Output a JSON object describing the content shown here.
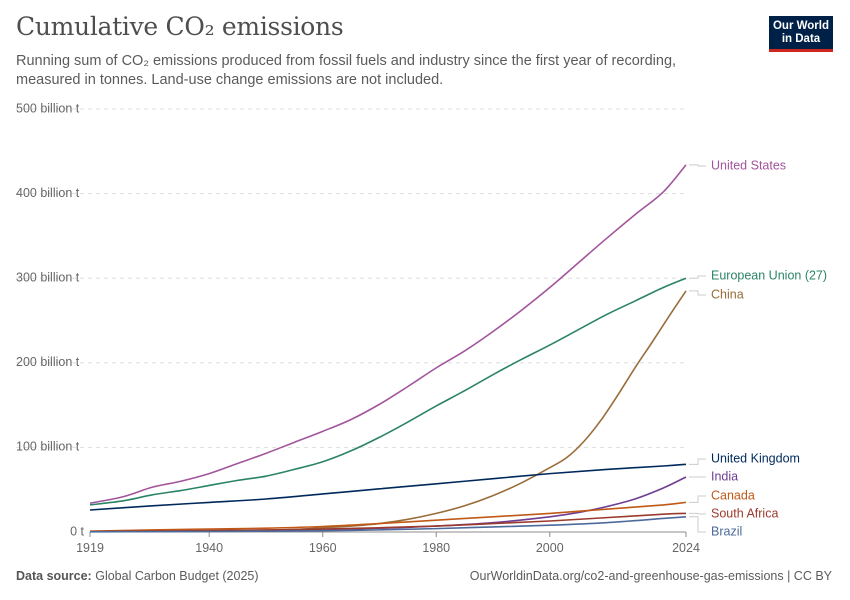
{
  "header": {
    "title": "Cumulative CO₂ emissions",
    "subtitle": "Running sum of CO₂ emissions produced from fossil fuels and industry since the first year of recording, measured in tonnes. Land-use change emissions are not included.",
    "logo_line1": "Our World",
    "logo_line2": "in Data"
  },
  "footer": {
    "source_label": "Data source:",
    "source": "Global Carbon Budget (2025)",
    "url": "OurWorldinData.org/co2-and-greenhouse-gas-emissions | CC BY"
  },
  "chart_data": {
    "type": "line",
    "title": "Cumulative CO₂ emissions",
    "xlim": [
      1919,
      2024
    ],
    "ylim": [
      0,
      500
    ],
    "x_ticks": [
      "1919",
      "1940",
      "1960",
      "1980",
      "2000",
      "2024"
    ],
    "x_tick_values": [
      1919,
      1940,
      1960,
      1980,
      2000,
      2024
    ],
    "y_ticks": [
      "0 t",
      "100 billion t",
      "200 billion t",
      "300 billion t",
      "400 billion t",
      "500 billion t"
    ],
    "y_tick_values": [
      0,
      100,
      200,
      300,
      400,
      500
    ],
    "grid": "horizontal dashed",
    "legend": "right, end-of-line labels",
    "series": [
      {
        "name": "United States",
        "color": "#a2559c",
        "x": [
          1919,
          1925,
          1930,
          1935,
          1940,
          1945,
          1950,
          1955,
          1960,
          1965,
          1970,
          1975,
          1980,
          1985,
          1990,
          1995,
          2000,
          2005,
          2010,
          2015,
          2020,
          2024
        ],
        "values": [
          34,
          42,
          53,
          60,
          69,
          81,
          93,
          106,
          119,
          133,
          151,
          172,
          194,
          214,
          237,
          262,
          289,
          318,
          347,
          375,
          402,
          434
        ]
      },
      {
        "name": "European Union (27)",
        "color": "#2b8465",
        "x": [
          1919,
          1925,
          1930,
          1935,
          1940,
          1945,
          1950,
          1955,
          1960,
          1965,
          1970,
          1975,
          1980,
          1985,
          1990,
          1995,
          2000,
          2005,
          2010,
          2015,
          2020,
          2024
        ],
        "values": [
          32,
          37,
          44,
          49,
          55,
          61,
          66,
          74,
          83,
          96,
          112,
          130,
          149,
          167,
          186,
          204,
          221,
          239,
          257,
          273,
          289,
          300
        ]
      },
      {
        "name": "China",
        "color": "#996d39",
        "x": [
          1919,
          1930,
          1940,
          1950,
          1955,
          1960,
          1965,
          1970,
          1975,
          1980,
          1985,
          1990,
          1995,
          2000,
          2003,
          2006,
          2009,
          2012,
          2015,
          2018,
          2021,
          2024
        ],
        "values": [
          0.5,
          1,
          1.5,
          2,
          3,
          5,
          7,
          10,
          15,
          22,
          31,
          43,
          58,
          76,
          88,
          107,
          132,
          162,
          194,
          224,
          255,
          285
        ]
      },
      {
        "name": "United Kingdom",
        "color": "#00295b",
        "x": [
          1919,
          1930,
          1940,
          1950,
          1960,
          1970,
          1980,
          1990,
          2000,
          2010,
          2020,
          2024
        ],
        "values": [
          26,
          31,
          35,
          39,
          45,
          51,
          57,
          63,
          69,
          74,
          78,
          80
        ]
      },
      {
        "name": "India",
        "color": "#6d3e91",
        "x": [
          1919,
          1930,
          1940,
          1950,
          1960,
          1970,
          1980,
          1990,
          2000,
          2005,
          2010,
          2015,
          2020,
          2024
        ],
        "values": [
          0.5,
          1,
          1.5,
          2,
          3,
          4.5,
          7,
          11,
          18,
          23,
          30,
          39,
          52,
          65
        ]
      },
      {
        "name": "Canada",
        "color": "#c05917",
        "x": [
          1919,
          1930,
          1940,
          1950,
          1960,
          1970,
          1980,
          1990,
          2000,
          2010,
          2020,
          2024
        ],
        "values": [
          1,
          2.5,
          3.5,
          4.5,
          6.5,
          10,
          14,
          18,
          22,
          27,
          32,
          35
        ]
      },
      {
        "name": "South Africa",
        "color": "#9a3a2e",
        "x": [
          1919,
          1930,
          1940,
          1950,
          1960,
          1970,
          1980,
          1990,
          2000,
          2010,
          2020,
          2024
        ],
        "values": [
          0.5,
          1,
          1.5,
          2.5,
          3.5,
          5,
          7,
          10,
          13,
          17,
          21,
          22
        ]
      },
      {
        "name": "Brazil",
        "color": "#4c6a9c",
        "x": [
          1919,
          1930,
          1940,
          1950,
          1960,
          1970,
          1980,
          1990,
          2000,
          2010,
          2020,
          2024
        ],
        "values": [
          0.2,
          0.4,
          0.6,
          1,
          1.5,
          2.5,
          4,
          6,
          8,
          11,
          16,
          18
        ]
      }
    ]
  }
}
